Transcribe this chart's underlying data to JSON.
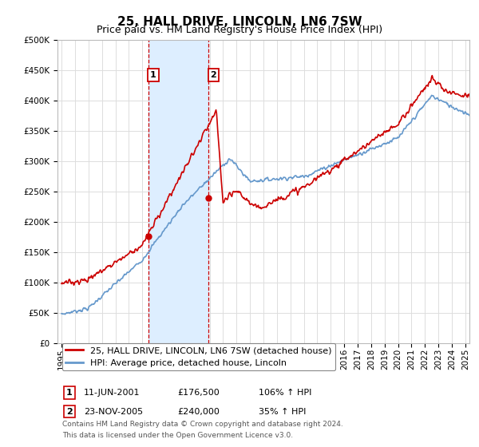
{
  "title": "25, HALL DRIVE, LINCOLN, LN6 7SW",
  "subtitle": "Price paid vs. HM Land Registry's House Price Index (HPI)",
  "ylabel_ticks": [
    0,
    50000,
    100000,
    150000,
    200000,
    250000,
    300000,
    350000,
    400000,
    450000,
    500000
  ],
  "ylabel_labels": [
    "£0",
    "£50K",
    "£100K",
    "£150K",
    "£200K",
    "£250K",
    "£300K",
    "£350K",
    "£400K",
    "£450K",
    "£500K"
  ],
  "ylim": [
    0,
    500000
  ],
  "x_start_year": 1995,
  "x_end_year": 2025,
  "sale1_date": 2001.44,
  "sale1_price": 176500,
  "sale1_label": "1",
  "sale1_display": "11-JUN-2001",
  "sale1_amount": "£176,500",
  "sale1_hpi": "106% ↑ HPI",
  "sale2_date": 2005.9,
  "sale2_price": 240000,
  "sale2_label": "2",
  "sale2_display": "23-NOV-2005",
  "sale2_amount": "£240,000",
  "sale2_hpi": "35% ↑ HPI",
  "line1_color": "#cc0000",
  "line2_color": "#6699cc",
  "shade_color": "#ddeeff",
  "vline_color": "#cc0000",
  "legend1_text": "25, HALL DRIVE, LINCOLN, LN6 7SW (detached house)",
  "legend2_text": "HPI: Average price, detached house, Lincoln",
  "footer1": "Contains HM Land Registry data © Crown copyright and database right 2024.",
  "footer2": "This data is licensed under the Open Government Licence v3.0.",
  "bg_color": "#ffffff",
  "grid_color": "#dddddd",
  "title_fontsize": 11,
  "subtitle_fontsize": 9,
  "tick_fontsize": 7.5,
  "legend_fontsize": 8,
  "footer_fontsize": 6.5
}
